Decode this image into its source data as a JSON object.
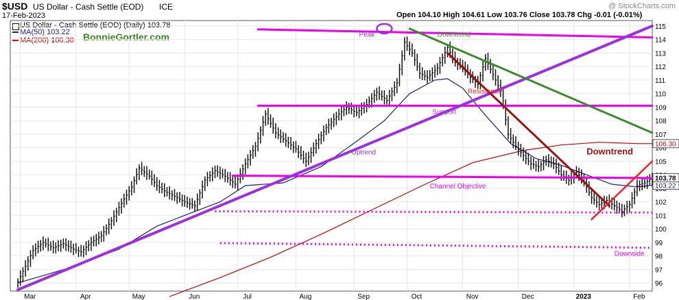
{
  "header": {
    "symbol": "$USD",
    "description": "US Dollar - Cash Settle (EOD)",
    "exchange": "ICE",
    "date": "17-Feb-2023",
    "watermark": "@ StockCharts.com",
    "ohlc_text": "Open 104.10  High 104.61  Low 103.76  Close 103.78  Chg -0.01 (-0.01%)",
    "price_legend": "US Dollar - Cash Settle (EOD) (Daily) 103.78",
    "ma50_legend": "MA(50) 103.22",
    "ma200_legend": "MA(200) 106.30",
    "brand": "BonnieGortler.com"
  },
  "colors": {
    "price": "#000000",
    "ma50": "#1a1a8c",
    "ma200": "#cc0000",
    "magenta": "#ee00ee",
    "purple": "#9b30e0",
    "green": "#3c8a2e",
    "darkred": "#9b1111",
    "red": "#ee2222",
    "brand": "#3a8a22",
    "grid": "#e6e6e6"
  },
  "chart_data": {
    "type": "line",
    "title": "$USD US Dollar - Cash Settle (EOD) ICE",
    "ylim": [
      95.4,
      115.4
    ],
    "y_ticks": [
      96,
      97,
      98,
      99,
      100,
      101,
      102,
      103,
      104,
      105,
      106,
      107,
      108,
      109,
      110,
      111,
      112,
      113,
      114,
      115
    ],
    "x_tick_labels": [
      "Mar",
      "Apr",
      "May",
      "Jun",
      "Jul",
      "Aug",
      "Sep",
      "Oct",
      "Nov",
      "Dec",
      "2023",
      "Feb"
    ],
    "x_tick_positions": [
      1,
      23,
      44,
      66,
      87,
      110,
      133,
      154,
      176,
      198,
      220,
      242
    ],
    "last_price_label": "103.78",
    "ma50_label": "103.22",
    "ma200_label": "106.30",
    "price_series": {
      "name": "US Dollar - Cash Settle (EOD) (Daily)",
      "x": [
        0,
        6,
        10,
        14,
        18,
        22,
        25,
        29,
        33,
        37,
        41,
        45,
        48,
        52,
        55,
        58,
        62,
        66,
        70,
        74,
        78,
        82,
        86,
        90,
        94,
        98,
        102,
        106,
        110,
        114,
        118,
        122,
        126,
        130,
        134,
        138,
        142,
        146,
        150,
        153,
        156,
        159,
        162,
        166,
        170,
        173,
        176,
        179,
        182,
        185,
        188,
        191,
        194,
        197,
        200,
        203,
        206,
        209,
        212,
        215,
        218,
        221,
        224,
        227,
        230,
        233,
        236,
        239,
        242,
        245,
        248,
        251
      ],
      "values": [
        96.1,
        98.4,
        99.0,
        98.6,
        98.9,
        98.5,
        98.3,
        99.0,
        99.5,
        100.6,
        101.9,
        103.1,
        104.5,
        103.9,
        103.2,
        102.8,
        102.4,
        102.0,
        101.7,
        103.6,
        104.3,
        103.9,
        103.3,
        104.8,
        106.1,
        108.5,
        107.1,
        106.5,
        105.9,
        105.0,
        106.3,
        107.5,
        108.3,
        109.0,
        108.6,
        109.2,
        110.1,
        109.5,
        110.8,
        113.8,
        113.0,
        111.5,
        111.2,
        111.9,
        113.4,
        112.3,
        112.0,
        111.2,
        110.7,
        112.6,
        111.4,
        110.2,
        107.0,
        106.1,
        105.4,
        104.8,
        104.6,
        105.1,
        104.8,
        104.0,
        103.6,
        104.2,
        103.5,
        102.3,
        101.8,
        102.1,
        101.7,
        101.3,
        101.8,
        103.2,
        103.4,
        103.78
      ]
    },
    "ma50_series": {
      "name": "MA(50)",
      "x": [
        0,
        20,
        40,
        55,
        66,
        80,
        90,
        105,
        120,
        135,
        145,
        155,
        165,
        170,
        176,
        185,
        195,
        205,
        215,
        225,
        235,
        245,
        251
      ],
      "values": [
        96.0,
        97.1,
        98.5,
        100.2,
        101.0,
        102.0,
        103.2,
        103.4,
        104.6,
        106.6,
        108.0,
        110.0,
        111.0,
        111.1,
        110.4,
        108.4,
        106.3,
        105.2,
        104.7,
        104.0,
        103.3,
        103.1,
        103.22
      ]
    },
    "ma200_series": {
      "name": "MA(200)",
      "x": [
        60,
        80,
        100,
        120,
        140,
        160,
        180,
        200,
        215,
        230,
        245,
        251
      ],
      "values": [
        95.0,
        96.4,
        97.9,
        99.6,
        101.4,
        103.2,
        104.9,
        105.8,
        106.2,
        106.4,
        106.3,
        106.3
      ]
    },
    "annotations": {
      "lines": [
        {
          "name": "peak-resistance-line",
          "x1": 95,
          "y1": 114.75,
          "x2": 251,
          "y2": 114.15,
          "color": "magenta",
          "width": 3
        },
        {
          "name": "resistance-line",
          "x1": 95,
          "y1": 109.1,
          "x2": 251,
          "y2": 109.1,
          "color": "magenta",
          "width": 3
        },
        {
          "name": "channel-objective-line",
          "x1": 85,
          "y1": 103.93,
          "x2": 251,
          "y2": 103.76,
          "color": "magenta",
          "width": 3
        },
        {
          "name": "uptrend-line",
          "x1": 0,
          "y1": 95.5,
          "x2": 251,
          "y2": 115.0,
          "color": "purple",
          "width": 4
        },
        {
          "name": "green-downtrend-line",
          "x1": 155,
          "y1": 114.8,
          "x2": 251,
          "y2": 107.1,
          "color": "green",
          "width": 3
        },
        {
          "name": "darkred-downtrend-line",
          "x1": 170,
          "y1": 113.0,
          "x2": 234,
          "y2": 101.7,
          "color": "darkred",
          "width": 3
        },
        {
          "name": "red-uptrend-line",
          "x1": 227,
          "y1": 100.7,
          "x2": 251,
          "y2": 105.0,
          "color": "red",
          "width": 2.5
        }
      ],
      "dotted_lines": [
        {
          "name": "support-dotted-line",
          "x1": 78,
          "y1": 101.3,
          "x2": 251,
          "y2": 101.2
        },
        {
          "name": "downside-dotted-line",
          "x1": 80,
          "y1": 98.95,
          "x2": 251,
          "y2": 98.6
        }
      ],
      "labels": [
        {
          "name": "peak-label",
          "text": "Peak",
          "x": 135,
          "y": 114.2,
          "color": "purple"
        },
        {
          "name": "downtrend-top-label",
          "text": "Downtrend",
          "x": 166,
          "y": 114.2,
          "color": "green"
        },
        {
          "name": "resistance-label",
          "text": "Resistance",
          "x": 178,
          "y": 110.0,
          "color": "red"
        },
        {
          "name": "support-label",
          "text": "Support",
          "x": 164,
          "y": 108.5,
          "color": "purple"
        },
        {
          "name": "uptrend-label",
          "text": "Uptrend",
          "x": 132,
          "y": 105.5,
          "color": "purple"
        },
        {
          "name": "downtrend-label",
          "text": "Downtrend",
          "x": 225,
          "y": 105.5,
          "color": "darkred"
        },
        {
          "name": "channel-objective-label",
          "text": "Channel Objective",
          "x": 163,
          "y": 103.0,
          "color": "magenta"
        },
        {
          "name": "downside-label",
          "text": "Downside",
          "x": 236,
          "y": 98.0,
          "color": "magenta"
        }
      ],
      "peak_marker_x": 145,
      "peak_marker_y": 114.8
    }
  }
}
